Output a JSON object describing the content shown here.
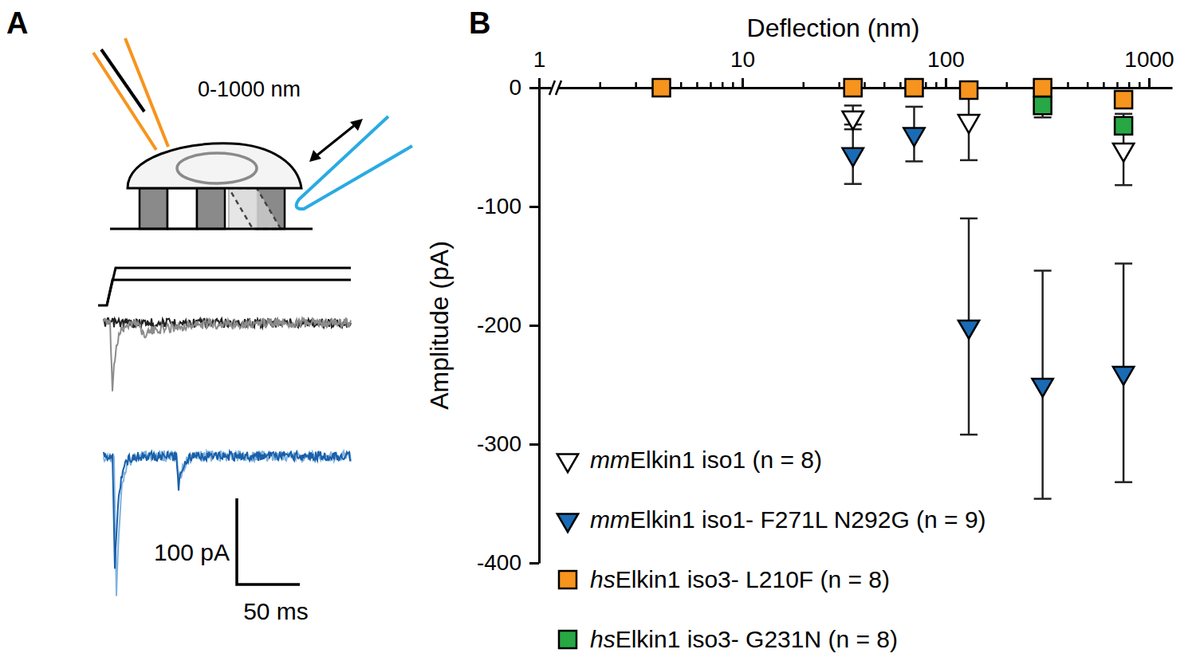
{
  "panel_labels": [
    "A",
    "B"
  ],
  "schematic": {
    "range_label": "0-1000 nm",
    "scale_bar_current": "100 pA",
    "scale_bar_time": "50 ms"
  },
  "chart_data": {
    "type": "scatter",
    "x_label": "Deflection (nm)",
    "y_label": "Amplitude (pA)",
    "x": [
      4,
      35,
      70,
      130,
      300,
      750
    ],
    "xlim": [
      1,
      1300
    ],
    "xticks": [
      1,
      10,
      100,
      1000
    ],
    "xminorticks": [
      2,
      3,
      4,
      5,
      6,
      7,
      8,
      9,
      20,
      30,
      40,
      50,
      60,
      70,
      80,
      90,
      200,
      300,
      400,
      500,
      600,
      700,
      800,
      900
    ],
    "ylim": [
      -400,
      0
    ],
    "yticks": [
      -400,
      -300,
      -200,
      -100,
      0
    ],
    "log": "x",
    "grid": false,
    "legend": "lower left",
    "series": [
      {
        "name": "mmElkin1 iso1 (n = 8)",
        "color": "#ffffff",
        "marker": "triangle-down",
        "values": [
          null,
          -25,
          null,
          -28,
          null,
          -52
        ],
        "errors": [
          null,
          10,
          null,
          33,
          null,
          30
        ]
      },
      {
        "name": "mmElkin1 iso1- F271L N292G (n = 9)",
        "color": "#1a6bb5",
        "marker": "triangle-down",
        "values": [
          null,
          -56,
          -39,
          -201,
          -250,
          -240
        ],
        "errors": [
          null,
          25,
          23,
          91,
          96,
          92
        ]
      },
      {
        "name": "hsElkin1 iso3- L210F (n = 8)",
        "color": "#f7941d",
        "marker": "square",
        "values": [
          0,
          0,
          0,
          -2,
          0,
          -10
        ],
        "errors": [
          0,
          0,
          0,
          3,
          2,
          5
        ]
      },
      {
        "name": "hsElkin1 iso3- G231N (n = 8)",
        "color": "#27a844",
        "marker": "square",
        "values": [
          null,
          null,
          null,
          null,
          -15,
          -32
        ],
        "errors": [
          null,
          null,
          null,
          null,
          10,
          5
        ]
      }
    ]
  }
}
